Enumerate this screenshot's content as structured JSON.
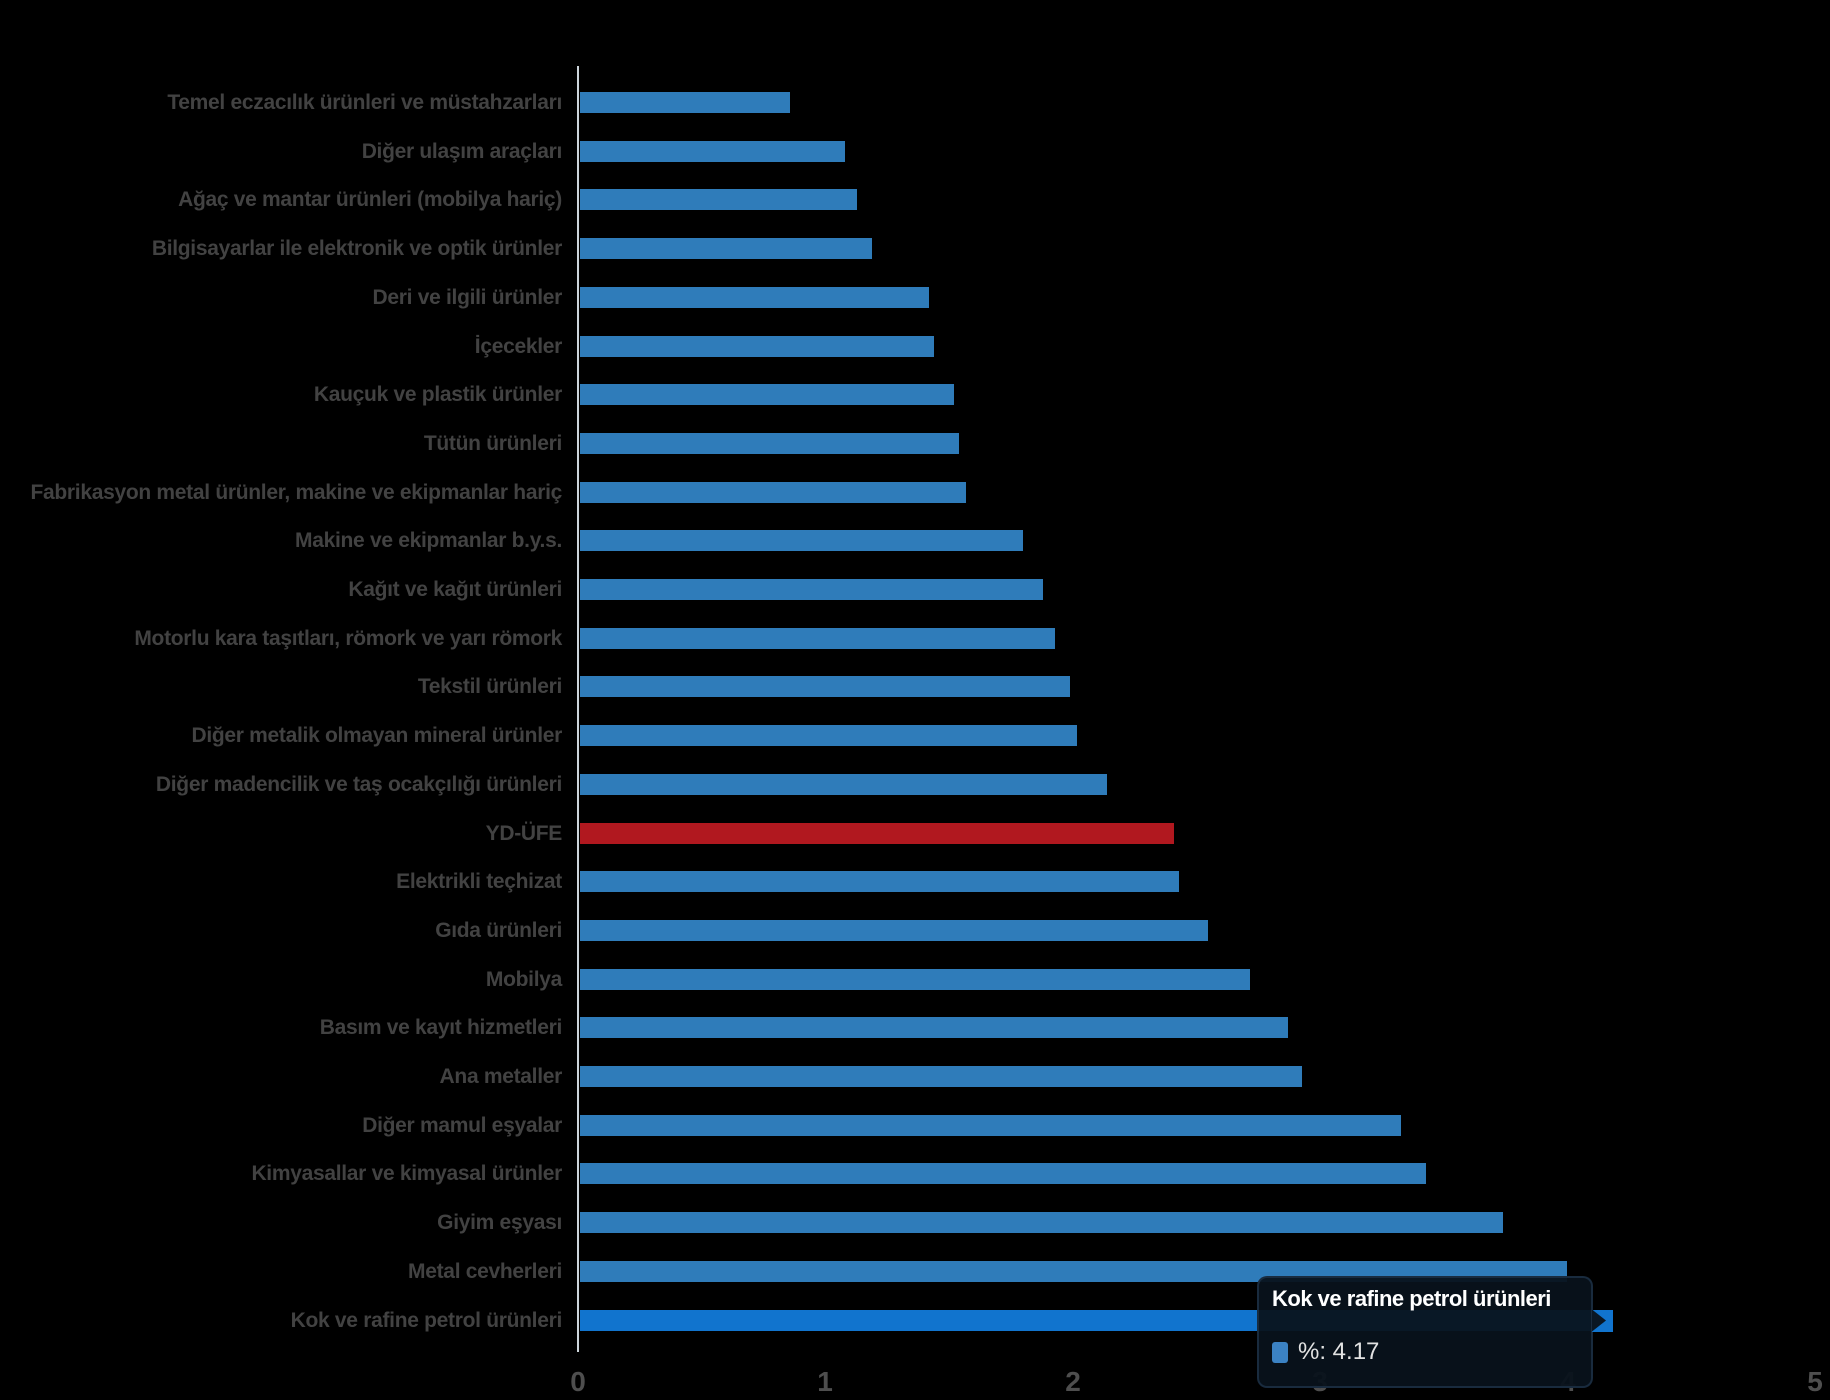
{
  "chart_data": {
    "type": "bar",
    "orientation": "horizontal",
    "title": "",
    "xlabel": "",
    "ylabel": "",
    "xlim": [
      0,
      5
    ],
    "x_ticks": [
      "0",
      "1",
      "2",
      "3",
      "4",
      "5"
    ],
    "grid": false,
    "legend_position": "none",
    "unit": "%",
    "categories": [
      "Temel eczacılık ürünleri ve müstahzarları",
      "Diğer ulaşım araçları",
      "Ağaç ve mantar ürünleri (mobilya hariç)",
      "Bilgisayarlar ile elektronik ve optik ürünler",
      "Deri ve ilgili ürünler",
      "İçecekler",
      "Kauçuk ve plastik ürünler",
      "Tütün ürünleri",
      "Fabrikasyon metal ürünler, makine ve ekipmanlar hariç",
      "Makine ve ekipmanlar b.y.s.",
      "Kağıt ve kağıt ürünleri",
      "Motorlu kara taşıtları, römork ve yarı römork",
      "Tekstil ürünleri",
      "Diğer metalik olmayan mineral ürünler",
      "Diğer madencilik ve taş ocakçılığı ürünleri",
      "YD-ÜFE",
      "Elektrikli teçhizat",
      "Gıda ürünleri",
      "Mobilya",
      "Basım ve kayıt hizmetleri",
      "Ana metaller",
      "Diğer mamul eşyalar",
      "Kimyasallar ve kimyasal ürünler",
      "Giyim eşyası",
      "Metal cevherleri",
      "Kok ve rafine petrol ürünleri"
    ],
    "values": [
      0.85,
      1.07,
      1.12,
      1.18,
      1.41,
      1.43,
      1.51,
      1.53,
      1.56,
      1.79,
      1.87,
      1.92,
      1.98,
      2.01,
      2.13,
      2.4,
      2.42,
      2.54,
      2.71,
      2.86,
      2.92,
      3.32,
      3.42,
      3.73,
      3.99,
      4.17
    ],
    "highlight_category": "YD-ÜFE",
    "hovered_category": "Kok ve rafine petrol ürünleri",
    "hovered_value": 4.17
  },
  "colors": {
    "bar": "#2F7CBA",
    "highlight_bar": "#B1181F",
    "hovered_bar": "#1174CE",
    "label_text": "#424242",
    "tick_text": "#4E4E4E",
    "axis_line": "#CDD5DB",
    "background": "#000000",
    "tooltip_swatch": "#3B82C3"
  },
  "tooltip": {
    "title": "Kok ve rafine petrol ürünleri",
    "value_label": "%: 4.17"
  }
}
